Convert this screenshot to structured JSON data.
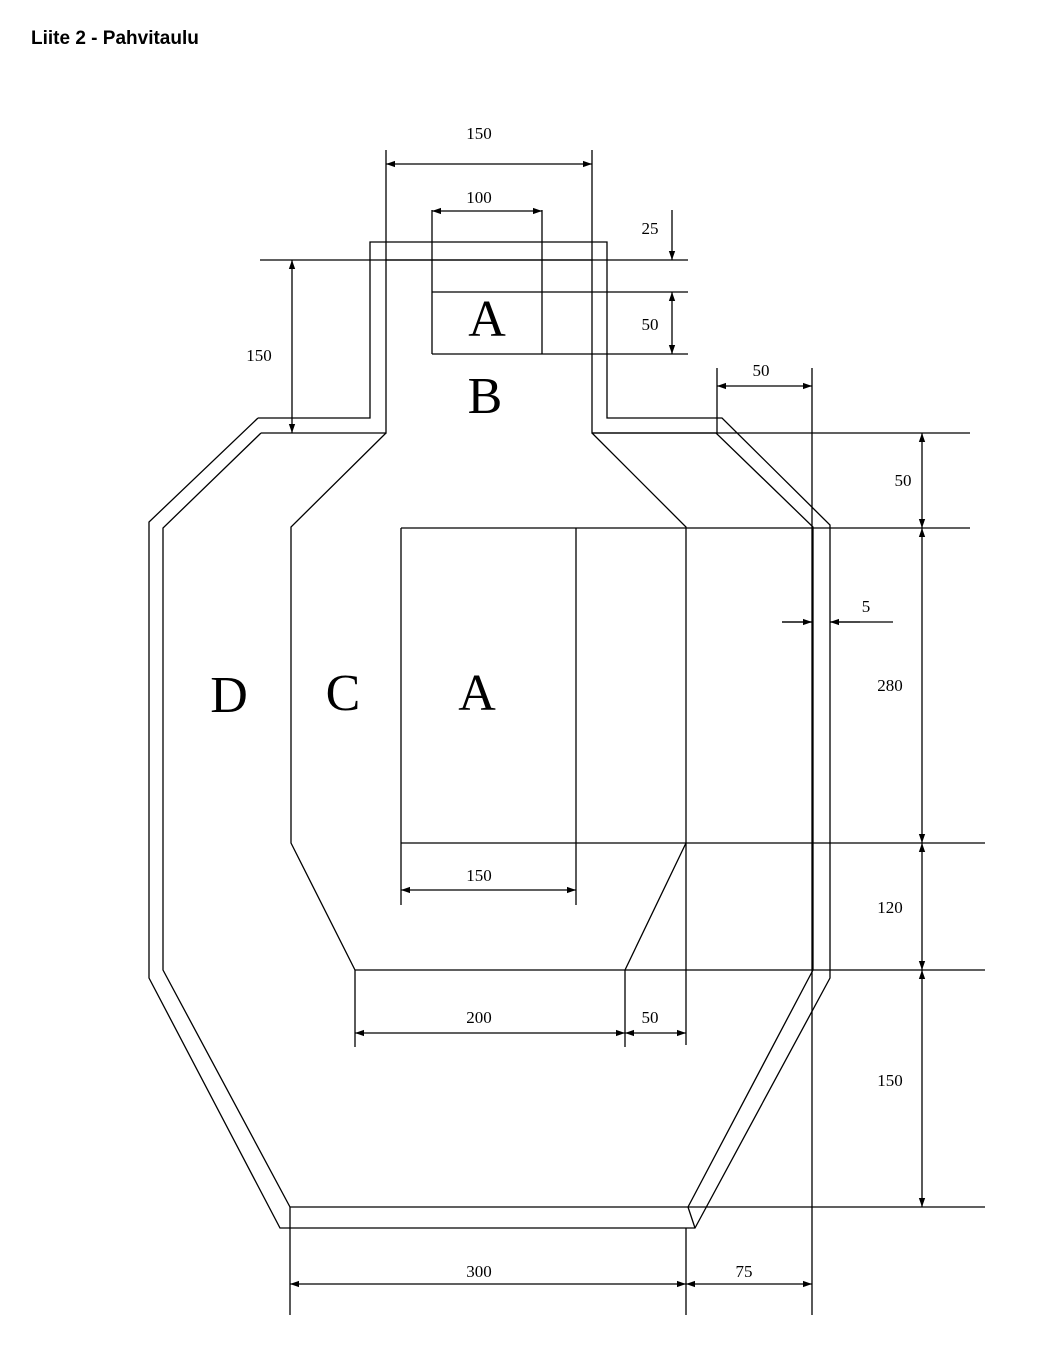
{
  "page": {
    "title": "Liite 2 - Pahvitaulu"
  },
  "zones": {
    "a_top": "A",
    "b": "B",
    "a_main": "A",
    "c": "C",
    "d": "D"
  },
  "dimensions": {
    "top_width_150": "150",
    "inner_width_100": "100",
    "offset_25": "25",
    "height_50_head": "50",
    "left_height_150": "150",
    "shoulder_50": "50",
    "right_50_top": "50",
    "border_5": "5",
    "height_280": "280",
    "width_150_main": "150",
    "height_120": "120",
    "width_200": "200",
    "width_50_bottom": "50",
    "height_150_bottom": "150",
    "width_300": "300",
    "width_75": "75"
  }
}
